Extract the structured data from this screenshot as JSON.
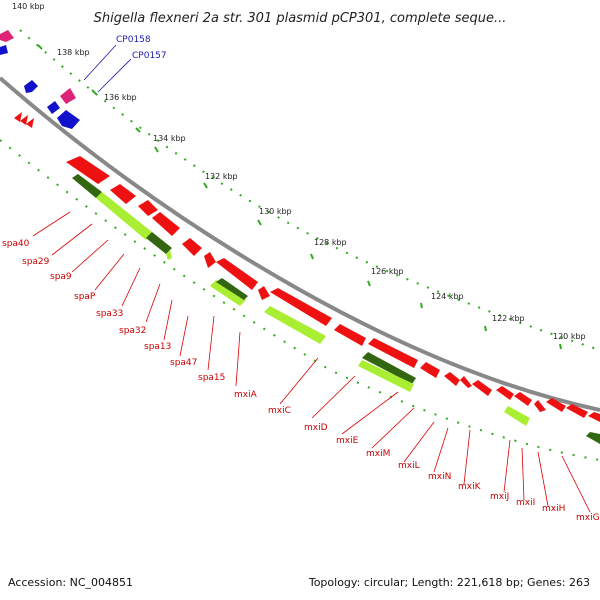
{
  "title": "Shigella flexneri 2a str. 301 plasmid pCP301, complete seque...",
  "accession": "Accession: NC_004851",
  "summary": "Topology: circular; Length: 221,618 bp; Genes: 263",
  "kbp_labels": [
    "140 kbp",
    "138 kbp",
    "136 kbp",
    "134 kbp",
    "132 kbp",
    "130 kbp",
    "128 kbp",
    "126 kbp",
    "124 kbp",
    "122 kbp",
    "120 kbp"
  ],
  "gene_labels": [
    "spa40",
    "spa29",
    "spa9",
    "spaP",
    "spa33",
    "spa32",
    "spa13",
    "spa47",
    "spa15",
    "mxiA",
    "mxiC",
    "mxiD",
    "mxiE",
    "mxiM",
    "mxiL",
    "mxiN",
    "mxiK",
    "mxiJ",
    "mxiI",
    "mxiH",
    "mxiG"
  ],
  "feature_labels": [
    "CP0158",
    "CP0157"
  ],
  "colors": {
    "cds_forward": "#ee1111",
    "gene_light": "#aaee33",
    "gene_dark": "#336611",
    "backbone": "#888888",
    "ticks": "#33aa22",
    "gene_label": "#cc0000",
    "feature_label": "#1a1aa8",
    "blue_feature": "#1111cc",
    "magenta_feature": "#dd2277"
  }
}
